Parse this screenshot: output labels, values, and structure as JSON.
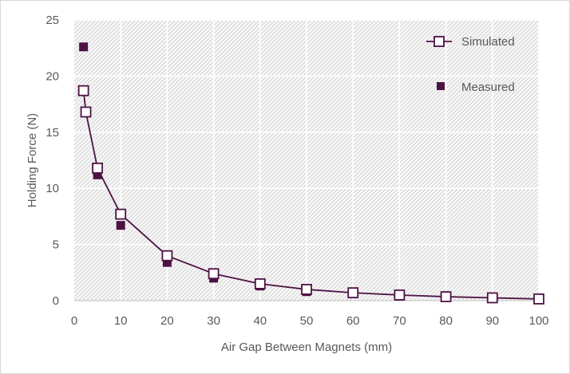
{
  "chart_data": {
    "type": "scatter",
    "title": "",
    "xlabel": "Air Gap Between Magnets (mm)",
    "ylabel": "Holding Force (N)",
    "xlim": [
      0,
      100
    ],
    "ylim": [
      0,
      25
    ],
    "x_ticks": [
      0,
      10,
      20,
      30,
      40,
      50,
      60,
      70,
      80,
      90,
      100
    ],
    "y_ticks": [
      0,
      5,
      10,
      15,
      20,
      25
    ],
    "grid": true,
    "legend_position": "top-right",
    "series": [
      {
        "name": "Simulated",
        "style": "line-with-hollow-square-markers",
        "color": "#4d1244",
        "x": [
          2,
          2.5,
          5,
          10,
          20,
          30,
          40,
          50,
          60,
          70,
          80,
          90,
          100
        ],
        "y": [
          18.7,
          16.8,
          11.8,
          7.7,
          4.0,
          2.4,
          1.5,
          1.0,
          0.7,
          0.5,
          0.35,
          0.25,
          0.15
        ]
      },
      {
        "name": "Measured",
        "style": "filled-square-markers",
        "color": "#4d1244",
        "x": [
          2,
          5,
          10,
          20,
          30,
          40,
          50,
          60,
          70,
          80
        ],
        "y": [
          22.6,
          11.2,
          6.7,
          3.4,
          2.0,
          1.3,
          0.8,
          0.6,
          0.4,
          0.3
        ]
      }
    ]
  }
}
